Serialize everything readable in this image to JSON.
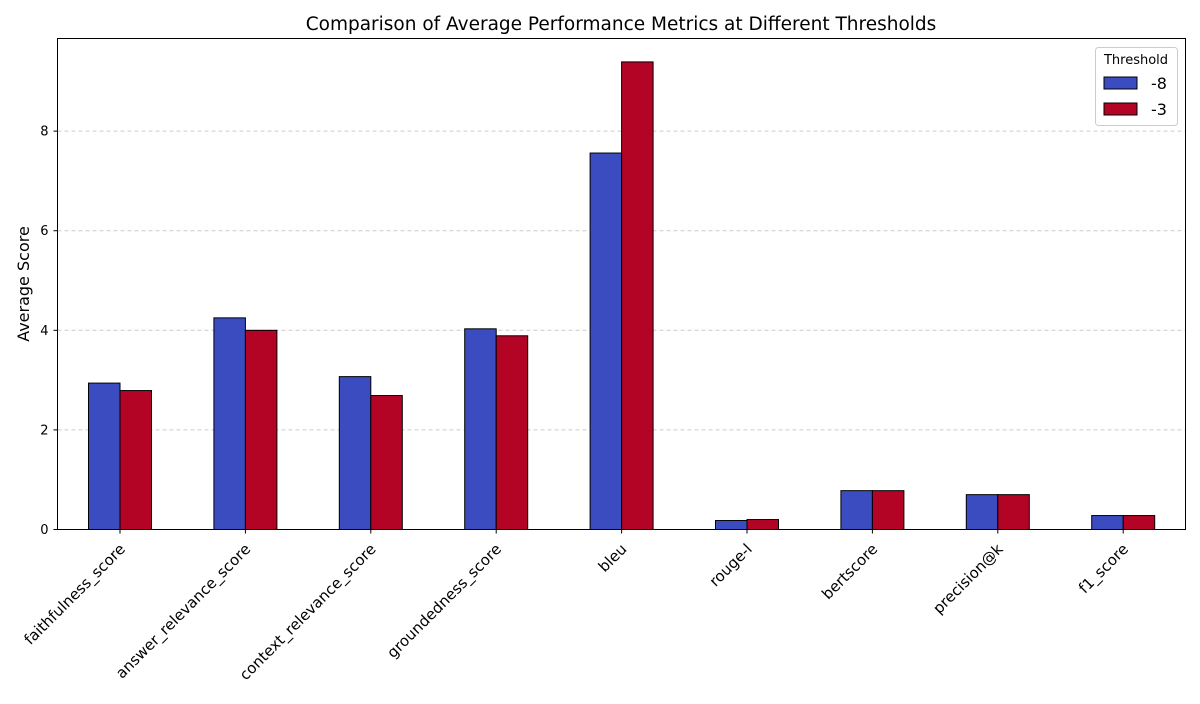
{
  "chart_data": {
    "type": "bar",
    "title": "Comparison of Average Performance Metrics at Different Thresholds",
    "xlabel": "",
    "ylabel": "Average Score",
    "categories": [
      "faithfulness_score",
      "answer_relevance_score",
      "context_relevance_score",
      "groundedness_score",
      "bleu",
      "rouge-l",
      "bertscore",
      "precision@k",
      "f1_score"
    ],
    "series": [
      {
        "name": "-8",
        "color": "#3b4cc0",
        "values": [
          2.94,
          4.25,
          3.07,
          4.03,
          7.56,
          0.18,
          0.78,
          0.7,
          0.28
        ]
      },
      {
        "name": "-3",
        "color": "#b40426",
        "values": [
          2.79,
          4.0,
          2.69,
          3.89,
          9.39,
          0.2,
          0.78,
          0.7,
          0.28
        ]
      }
    ],
    "ylim": [
      0,
      9.86
    ],
    "yticks": [
      0,
      2,
      4,
      6,
      8
    ],
    "grid": "y-dashed",
    "legend": {
      "title": "Threshold",
      "placement": "top-right"
    }
  }
}
